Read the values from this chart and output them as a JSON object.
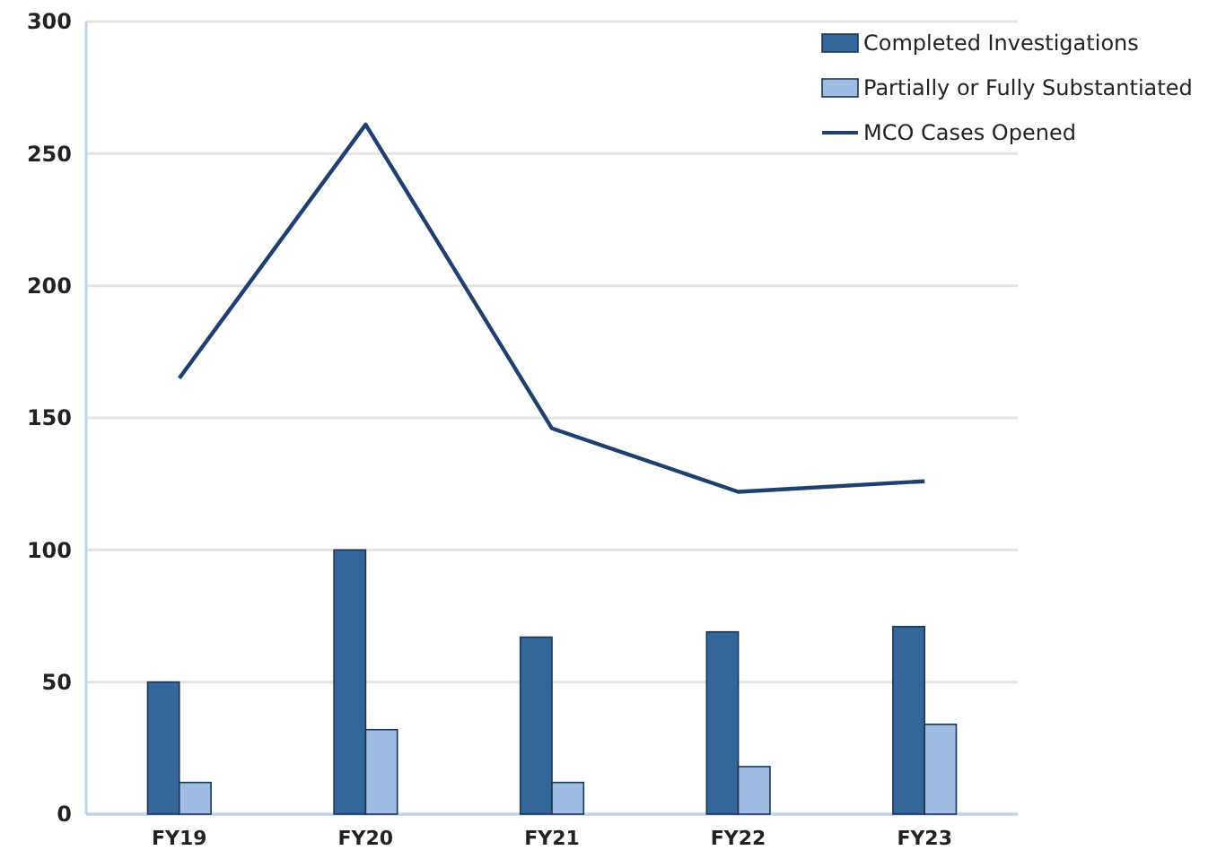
{
  "chart_data": {
    "type": "bar",
    "categories": [
      "FY19",
      "FY20",
      "FY21",
      "FY22",
      "FY23"
    ],
    "series": [
      {
        "name": "Completed Investigations",
        "color": "#336699",
        "values": [
          50,
          100,
          67,
          69,
          71
        ]
      },
      {
        "name": "Partially or Fully Substantiated",
        "color": "#9dbde3",
        "values": [
          12,
          32,
          12,
          18,
          34
        ]
      },
      {
        "name": "MCO Cases Opened",
        "type": "line",
        "color": "#1f3f6e",
        "values": [
          165,
          261,
          146,
          122,
          126
        ]
      }
    ],
    "ylim": [
      0,
      300
    ],
    "yticks": [
      0,
      50,
      100,
      150,
      200,
      250,
      300
    ],
    "grid": "y",
    "legend": "top right",
    "marker": "none"
  }
}
